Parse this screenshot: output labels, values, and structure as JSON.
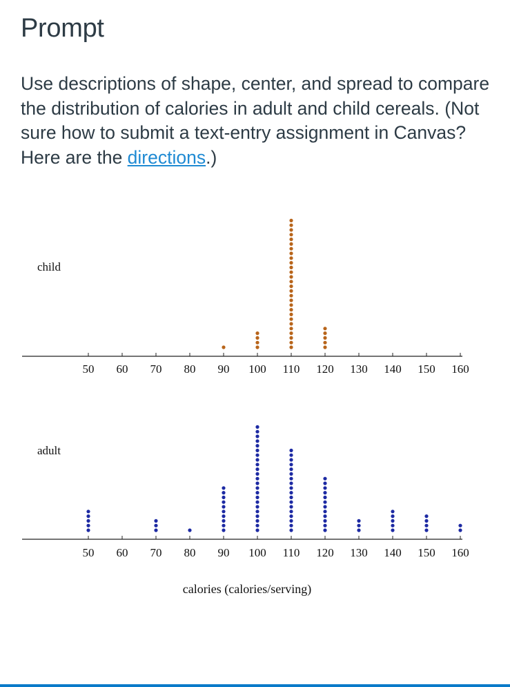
{
  "prompt": {
    "title": "Prompt",
    "text_before_link": "Use descriptions of shape, center, and spread to compare the distribution of calories in adult and child cereals. (Not sure how to submit a text-entry assignment in Canvas? Here are the ",
    "link_text": "directions",
    "text_after_link": ".)"
  },
  "chart_data": [
    {
      "type": "scatter",
      "subtype": "dot-plot",
      "row_label": "child",
      "color": "#b8651b",
      "xlabel": "",
      "xlim": [
        50,
        160
      ],
      "ticks": [
        50,
        60,
        70,
        80,
        90,
        100,
        110,
        120,
        130,
        140,
        150,
        160
      ],
      "points": [
        {
          "x": 90,
          "count": 1
        },
        {
          "x": 100,
          "count": 4
        },
        {
          "x": 110,
          "count": 28
        },
        {
          "x": 120,
          "count": 5
        }
      ]
    },
    {
      "type": "scatter",
      "subtype": "dot-plot",
      "row_label": "adult",
      "color": "#1d2aa3",
      "xlabel": "calories (calories/serving)",
      "xlim": [
        50,
        160
      ],
      "ticks": [
        50,
        60,
        70,
        80,
        90,
        100,
        110,
        120,
        130,
        140,
        150,
        160
      ],
      "points": [
        {
          "x": 50,
          "count": 5
        },
        {
          "x": 70,
          "count": 3
        },
        {
          "x": 80,
          "count": 1
        },
        {
          "x": 90,
          "count": 10
        },
        {
          "x": 100,
          "count": 23
        },
        {
          "x": 110,
          "count": 18
        },
        {
          "x": 120,
          "count": 12
        },
        {
          "x": 130,
          "count": 3
        },
        {
          "x": 140,
          "count": 5
        },
        {
          "x": 150,
          "count": 4
        },
        {
          "x": 160,
          "count": 2
        }
      ]
    }
  ]
}
